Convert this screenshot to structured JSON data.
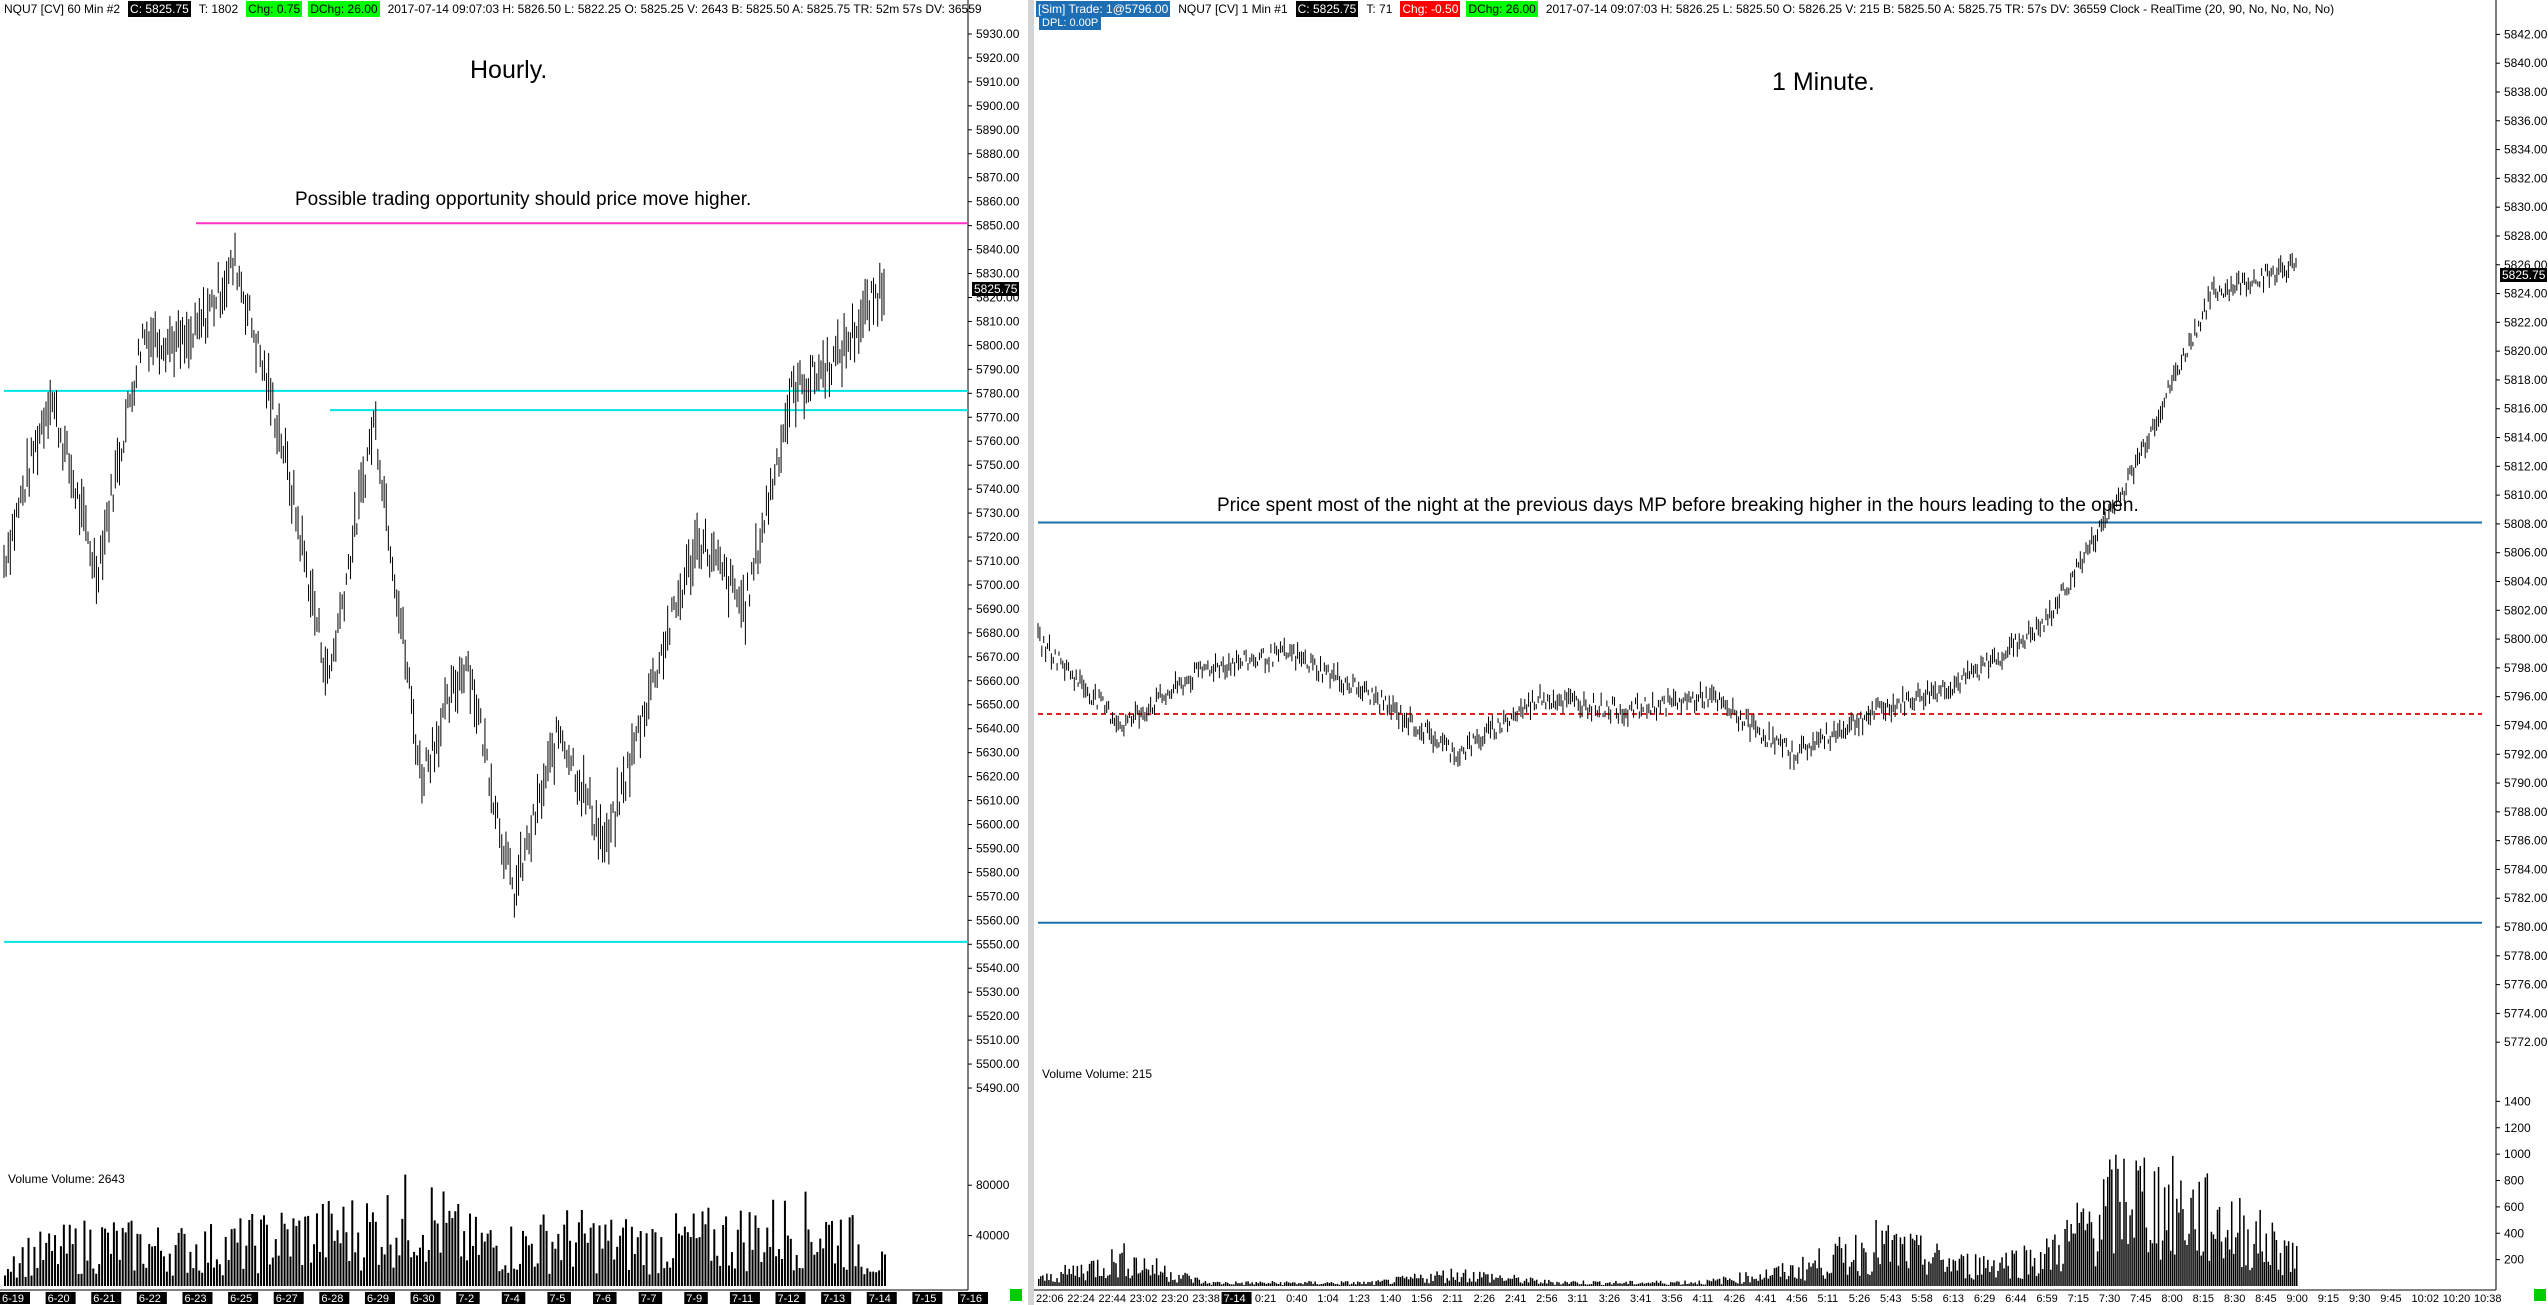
{
  "left": {
    "header": [
      {
        "t": "NQU7 [CV]  60 Min  #2",
        "c": ""
      },
      {
        "t": "C: 5825.75",
        "c": "blk"
      },
      {
        "t": "T: 1802",
        "c": ""
      },
      {
        "t": "Chg: 0.75",
        "c": "grn"
      },
      {
        "t": "DChg: 26.00",
        "c": "grn"
      },
      {
        "t": "2017-07-14 09:07:03  H: 5826.50  L: 5822.25  O: 5825.25  V: 2643  B: 5825.50  A: 5825.75  TR: 52m 57s  DV: 36559",
        "c": ""
      }
    ],
    "title": "Hourly.",
    "annotation": "Possible trading opportunity should price move higher.",
    "volume_label": "Volume  Volume: 2643",
    "price_badge": "5825.75",
    "y_ticks": [
      "5930.00",
      "5920.00",
      "5910.00",
      "5900.00",
      "5890.00",
      "5880.00",
      "5870.00",
      "5860.00",
      "5850.00",
      "5840.00",
      "5830.00",
      "5820.00",
      "5810.00",
      "5800.00",
      "5790.00",
      "5780.00",
      "5770.00",
      "5760.00",
      "5750.00",
      "5740.00",
      "5730.00",
      "5720.00",
      "5710.00",
      "5700.00",
      "5690.00",
      "5680.00",
      "5670.00",
      "5660.00",
      "5650.00",
      "5640.00",
      "5630.00",
      "5620.00",
      "5610.00",
      "5600.00",
      "5590.00",
      "5580.00",
      "5570.00",
      "5560.00",
      "5550.00",
      "5540.00",
      "5530.00",
      "5520.00",
      "5510.00",
      "5500.00",
      "5490.00"
    ],
    "vol_ticks": [
      "80000",
      "40000"
    ],
    "x_labels": [
      "6-19",
      "6-20",
      "6-21",
      "6-22",
      "6-23",
      "6-25",
      "6-27",
      "6-28",
      "6-29",
      "6-30",
      "7-2",
      "7-4",
      "7-5",
      "7-6",
      "7-7",
      "7-9",
      "7-11",
      "7-12",
      "7-13",
      "7-14",
      "7-15",
      "7-16"
    ]
  },
  "right": {
    "header": [
      {
        "t": "[Sim]  Trade: 1@5796.00",
        "c": "blu"
      },
      {
        "t": "NQU7 [CV]  1 Min  #1",
        "c": ""
      },
      {
        "t": "C: 5825.75",
        "c": "blk"
      },
      {
        "t": "T: 71",
        "c": ""
      },
      {
        "t": "Chg: -0.50",
        "c": "red"
      },
      {
        "t": "DChg: 26.00",
        "c": "grn"
      },
      {
        "t": "2017-07-14 09:07:03  H: 5826.25  L: 5825.50  O: 5826.25  V: 215  B: 5825.50  A: 5825.75  TR: 57s  DV: 36559  Clock - RealTime   (20, 90, No, No, No, No)",
        "c": ""
      }
    ],
    "sub": "DPL: 0.00P",
    "title": "1 Minute.",
    "annotation": "Price spent most of the night at the previous days MP before breaking higher in the hours leading to the open.",
    "volume_label": "Volume  Volume: 215",
    "price_badge": "5825.75",
    "y_ticks": [
      "5842.00",
      "5840.00",
      "5838.00",
      "5836.00",
      "5834.00",
      "5832.00",
      "5830.00",
      "5828.00",
      "5826.00",
      "5824.00",
      "5822.00",
      "5820.00",
      "5818.00",
      "5816.00",
      "5814.00",
      "5812.00",
      "5810.00",
      "5808.00",
      "5806.00",
      "5804.00",
      "5802.00",
      "5800.00",
      "5798.00",
      "5796.00",
      "5794.00",
      "5792.00",
      "5790.00",
      "5788.00",
      "5786.00",
      "5784.00",
      "5782.00",
      "5780.00",
      "5778.00",
      "5776.00",
      "5774.00",
      "5772.00"
    ],
    "vol_ticks": [
      "1400",
      "1200",
      "1000",
      "800",
      "600",
      "400",
      "200"
    ],
    "x_labels": [
      "22:06",
      "22:24",
      "22:44",
      "23:02",
      "23:20",
      "23:38",
      "7-14",
      "0:21",
      "0:40",
      "1:04",
      "1:23",
      "1:40",
      "1:56",
      "2:11",
      "2:26",
      "2:41",
      "2:56",
      "3:11",
      "3:26",
      "3:41",
      "3:56",
      "4:11",
      "4:26",
      "4:41",
      "4:56",
      "5:11",
      "5:26",
      "5:43",
      "5:58",
      "6:13",
      "6:29",
      "6:44",
      "6:59",
      "7:15",
      "7:30",
      "7:45",
      "8:00",
      "8:15",
      "8:30",
      "8:45",
      "9:00",
      "9:15",
      "9:30",
      "9:45",
      "10:02",
      "10:20",
      "10:38"
    ]
  },
  "colors": {
    "magenta": "#ff33cc",
    "cyan": "#00e5e5",
    "blue": "#1f6fa8",
    "red_dash": "#e02020",
    "bars": "#000000"
  },
  "chart_data": [
    {
      "type": "line",
      "title": "Hourly.",
      "ylim": [
        5485,
        5935
      ],
      "levels": {
        "magenta": 5851,
        "cyan": [
          5781,
          5773,
          5551
        ]
      },
      "x": [
        "6-19",
        "6-20",
        "6-21",
        "6-22",
        "6-23",
        "6-25",
        "6-27",
        "6-28",
        "6-29",
        "6-30",
        "7-2",
        "7-4",
        "7-5",
        "7-6",
        "7-7",
        "7-9",
        "7-11",
        "7-12",
        "7-13",
        "7-14"
      ],
      "close": [
        5710,
        5780,
        5705,
        5805,
        5800,
        5835,
        5760,
        5660,
        5770,
        5620,
        5670,
        5570,
        5640,
        5590,
        5660,
        5720,
        5690,
        5780,
        5795,
        5826
      ],
      "volume_ylim": [
        0,
        100000
      ],
      "volume": [
        30000,
        35000,
        45000,
        40000,
        38000,
        42000,
        50000,
        55000,
        60000,
        75000,
        45000,
        40000,
        50000,
        45000,
        42000,
        48000,
        52000,
        60000,
        55000,
        20000
      ]
    },
    {
      "type": "line",
      "title": "1 Minute.",
      "ylim": [
        5770,
        5843
      ],
      "levels": {
        "blue": [
          5808.1,
          5780.3
        ],
        "red_dash": 5794.8
      },
      "x": [
        "22:06",
        "23:02",
        "0:21",
        "1:04",
        "2:11",
        "2:56",
        "3:41",
        "4:26",
        "5:11",
        "5:43",
        "6:29",
        "7:15",
        "8:00",
        "8:30",
        "9:00",
        "9:07"
      ],
      "close": [
        5800,
        5794,
        5798,
        5799,
        5796,
        5792,
        5796,
        5795,
        5796,
        5792,
        5795,
        5797,
        5801,
        5811,
        5824,
        5826
      ],
      "volume_ylim": [
        0,
        1600
      ],
      "volume": [
        60,
        260,
        30,
        30,
        30,
        120,
        40,
        30,
        40,
        150,
        400,
        200,
        280,
        900,
        650,
        300
      ]
    }
  ]
}
